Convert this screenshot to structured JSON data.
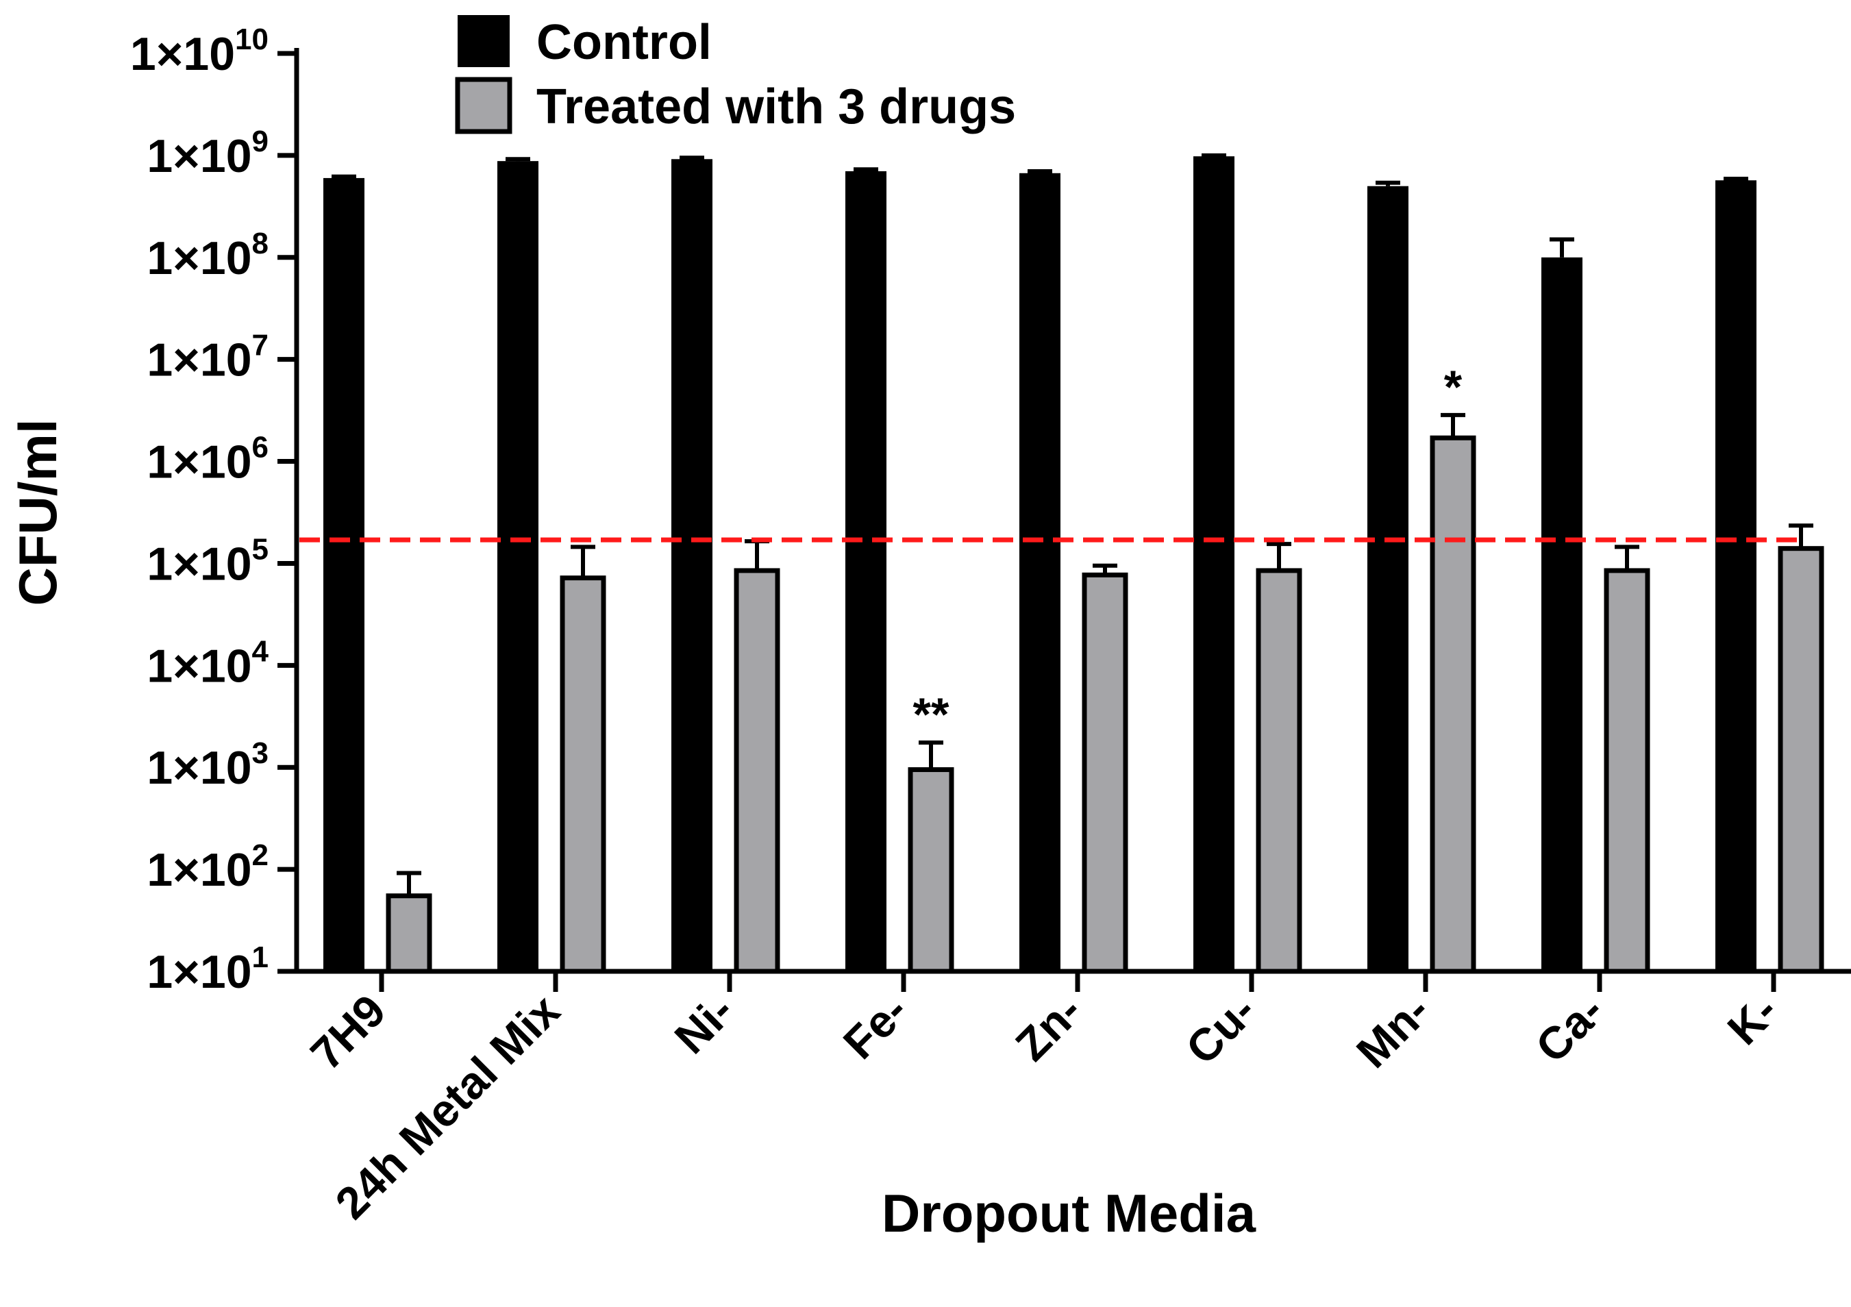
{
  "chart_data": {
    "type": "bar",
    "scale": "log10",
    "xlabel": "Dropout Media",
    "ylabel": "CFU/ml",
    "ylim": [
      10,
      10000000000
    ],
    "yticks": [
      {
        "base": "1×10",
        "exp": "1",
        "value": 10
      },
      {
        "base": "1×10",
        "exp": "2",
        "value": 100
      },
      {
        "base": "1×10",
        "exp": "3",
        "value": 1000
      },
      {
        "base": "1×10",
        "exp": "4",
        "value": 10000
      },
      {
        "base": "1×10",
        "exp": "5",
        "value": 100000
      },
      {
        "base": "1×10",
        "exp": "6",
        "value": 1000000
      },
      {
        "base": "1×10",
        "exp": "7",
        "value": 10000000
      },
      {
        "base": "1×10",
        "exp": "8",
        "value": 100000000
      },
      {
        "base": "1×10",
        "exp": "9",
        "value": 1000000000
      },
      {
        "base": "1×10",
        "exp": "10",
        "value": 10000000000
      }
    ],
    "categories": [
      "7H9",
      "24h Metal Mix",
      "Ni-",
      "Fe-",
      "Zn-",
      "Cu-",
      "Mn-",
      "Ca-",
      "K-"
    ],
    "series": [
      {
        "name": "Control",
        "color": "#000000",
        "values": [
          600000000,
          880000000,
          920000000,
          700000000,
          670000000,
          980000000,
          500000000,
          100000000,
          570000000
        ],
        "error_upper": [
          620000000,
          920000000,
          950000000,
          730000000,
          700000000,
          1000000000,
          540000000,
          150000000,
          590000000
        ]
      },
      {
        "name": "Treated with 3 drugs",
        "color": "#a5a5a8",
        "values": [
          55,
          72000,
          85000,
          950,
          77000,
          85000,
          1700000,
          85000,
          140000
        ],
        "error_upper": [
          92,
          145000,
          165000,
          1750,
          95000,
          155000,
          2850000,
          145000,
          235000
        ]
      }
    ],
    "threshold": {
      "value": 170000,
      "color": "#ff1a1a",
      "style": "dashed"
    },
    "annotations": [
      {
        "category": "Fe-",
        "series": "Treated with 3 drugs",
        "text": "**"
      },
      {
        "category": "Mn-",
        "series": "Treated with 3 drugs",
        "text": "*"
      }
    ],
    "legend": {
      "position": "top-center",
      "entries": [
        "Control",
        "Treated with 3 drugs"
      ]
    },
    "grid": false
  }
}
